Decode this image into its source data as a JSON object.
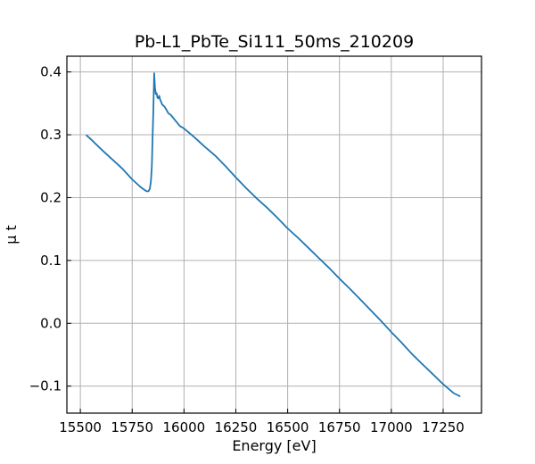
{
  "chart_data": {
    "type": "line",
    "title": "Pb-L1_PbTe_Si111_50ms_210209",
    "xlabel": "Energy [eV]",
    "ylabel": "μ t",
    "xlim": [
      15435,
      17435
    ],
    "ylim": [
      -0.143,
      0.425
    ],
    "x_ticks": [
      15500,
      15750,
      16000,
      16250,
      16500,
      16750,
      17000,
      17250
    ],
    "x_tick_labels": [
      "15500",
      "15750",
      "16000",
      "16250",
      "16500",
      "16750",
      "17000",
      "17250"
    ],
    "y_ticks": [
      -0.1,
      0.0,
      0.1,
      0.2,
      0.3,
      0.4
    ],
    "y_tick_labels": [
      "−0.1",
      "0.0",
      "0.1",
      "0.2",
      "0.3",
      "0.4"
    ],
    "grid": true,
    "series": [
      {
        "color": "#1f77b4",
        "x": [
          15530,
          15560,
          15600,
          15650,
          15700,
          15750,
          15790,
          15810,
          15820,
          15828,
          15835,
          15840,
          15845,
          15848,
          15852,
          15856,
          15860,
          15864,
          15868,
          15872,
          15876,
          15880,
          15885,
          15890,
          15895,
          15905,
          15915,
          15925,
          15935,
          15950,
          15965,
          15980,
          16000,
          16050,
          16100,
          16150,
          16200,
          16250,
          16300,
          16350,
          16400,
          16450,
          16500,
          16550,
          16600,
          16650,
          16700,
          16750,
          16800,
          16850,
          16900,
          16950,
          17000,
          17050,
          17100,
          17150,
          17200,
          17250,
          17300,
          17330
        ],
        "y": [
          0.299,
          0.29,
          0.277,
          0.262,
          0.247,
          0.229,
          0.217,
          0.212,
          0.21,
          0.21,
          0.214,
          0.225,
          0.25,
          0.29,
          0.34,
          0.398,
          0.375,
          0.365,
          0.366,
          0.359,
          0.358,
          0.362,
          0.356,
          0.352,
          0.348,
          0.345,
          0.34,
          0.334,
          0.332,
          0.326,
          0.32,
          0.314,
          0.31,
          0.296,
          0.281,
          0.267,
          0.25,
          0.232,
          0.215,
          0.199,
          0.184,
          0.168,
          0.151,
          0.136,
          0.12,
          0.104,
          0.088,
          0.071,
          0.055,
          0.038,
          0.021,
          0.004,
          -0.014,
          -0.031,
          -0.049,
          -0.065,
          -0.081,
          -0.097,
          -0.111,
          -0.116
        ]
      }
    ]
  }
}
